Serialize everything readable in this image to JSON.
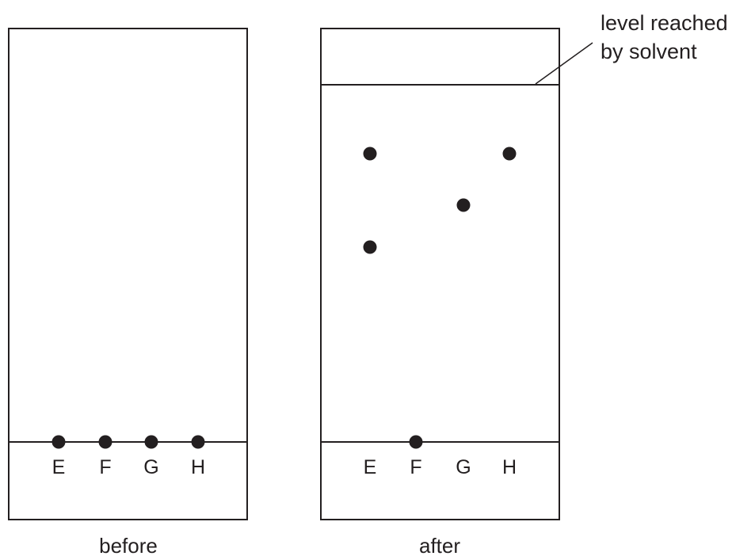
{
  "diagram": {
    "lanes": [
      "E",
      "F",
      "G",
      "H"
    ],
    "before": {
      "caption": "before",
      "spots": [
        {
          "lane": "E",
          "position": "baseline"
        },
        {
          "lane": "F",
          "position": "baseline"
        },
        {
          "lane": "G",
          "position": "baseline"
        },
        {
          "lane": "H",
          "position": "baseline"
        }
      ]
    },
    "after": {
      "caption": "after",
      "spots": [
        {
          "lane": "E",
          "position": "upper"
        },
        {
          "lane": "E",
          "position": "middle"
        },
        {
          "lane": "F",
          "position": "baseline"
        },
        {
          "lane": "G",
          "position": "upper-middle"
        },
        {
          "lane": "H",
          "position": "upper"
        }
      ]
    },
    "solvent_annotation": {
      "line1": "level reached",
      "line2": "by solvent"
    },
    "colors": {
      "ink": "#231f20",
      "background": "#ffffff"
    }
  }
}
